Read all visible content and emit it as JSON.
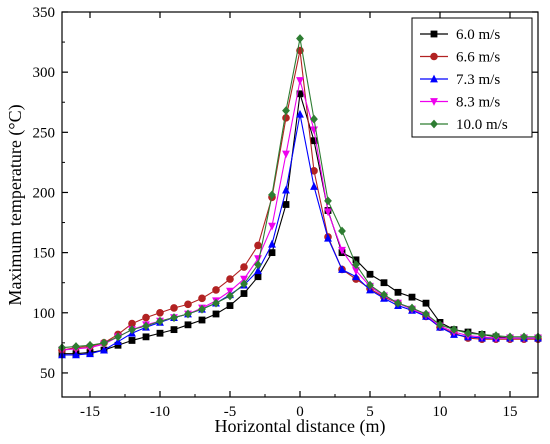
{
  "chart_data": {
    "type": "line",
    "xlabel": "Horizontal distance (m)",
    "ylabel": "Maximum temperature (°C)",
    "xlim": [
      -17,
      17
    ],
    "ylim": [
      30,
      350
    ],
    "xticks": [
      -15,
      -10,
      -5,
      0,
      5,
      10,
      15
    ],
    "yticks": [
      50,
      100,
      150,
      200,
      250,
      300,
      350
    ],
    "grid": false,
    "legend_position": "top-right",
    "x": [
      -17,
      -16,
      -15,
      -14,
      -13,
      -12,
      -11,
      -10,
      -9,
      -8,
      -7,
      -6,
      -5,
      -4,
      -3,
      -2,
      -1,
      0,
      1,
      2,
      3,
      4,
      5,
      6,
      7,
      8,
      9,
      10,
      11,
      12,
      13,
      14,
      15,
      16,
      17
    ],
    "series": [
      {
        "name": "6.0 m/s",
        "color": "#000000",
        "marker": "square",
        "values": [
          66,
          66,
          67,
          69,
          73,
          77,
          80,
          83,
          86,
          90,
          94,
          99,
          106,
          116,
          130,
          150,
          190,
          282,
          243,
          185,
          150,
          144,
          132,
          125,
          117,
          113,
          108,
          92,
          86,
          84,
          82,
          80,
          79,
          79,
          79
        ]
      },
      {
        "name": "6.6 m/s",
        "color": "#b22222",
        "marker": "circle",
        "values": [
          69,
          71,
          72,
          75,
          82,
          91,
          96,
          100,
          104,
          107,
          112,
          119,
          128,
          138,
          156,
          196,
          262,
          318,
          218,
          163,
          136,
          128,
          120,
          113,
          108,
          103,
          97,
          88,
          83,
          79,
          78,
          78,
          78,
          78,
          78
        ]
      },
      {
        "name": "7.3 m/s",
        "color": "#0000ff",
        "marker": "triangle",
        "values": [
          65,
          65,
          66,
          69,
          76,
          83,
          88,
          92,
          96,
          99,
          103,
          108,
          115,
          123,
          135,
          157,
          202,
          265,
          205,
          162,
          136,
          130,
          119,
          112,
          106,
          102,
          97,
          88,
          82,
          80,
          79,
          79,
          79,
          79,
          79
        ]
      },
      {
        "name": "8.3 m/s",
        "color": "#ee00ee",
        "marker": "triangle-down",
        "values": [
          69,
          70,
          71,
          74,
          80,
          86,
          90,
          93,
          96,
          99,
          104,
          110,
          118,
          128,
          145,
          172,
          232,
          293,
          252,
          184,
          152,
          135,
          122,
          114,
          108,
          103,
          98,
          89,
          84,
          81,
          80,
          79,
          79,
          79,
          79
        ]
      },
      {
        "name": "10.0 m/s",
        "color": "#2e7d32",
        "marker": "diamond",
        "values": [
          71,
          72,
          73,
          75,
          80,
          86,
          89,
          93,
          96,
          99,
          103,
          108,
          114,
          124,
          140,
          198,
          268,
          328,
          261,
          193,
          168,
          140,
          123,
          115,
          108,
          104,
          99,
          90,
          86,
          83,
          82,
          81,
          80,
          80,
          80
        ]
      }
    ]
  }
}
